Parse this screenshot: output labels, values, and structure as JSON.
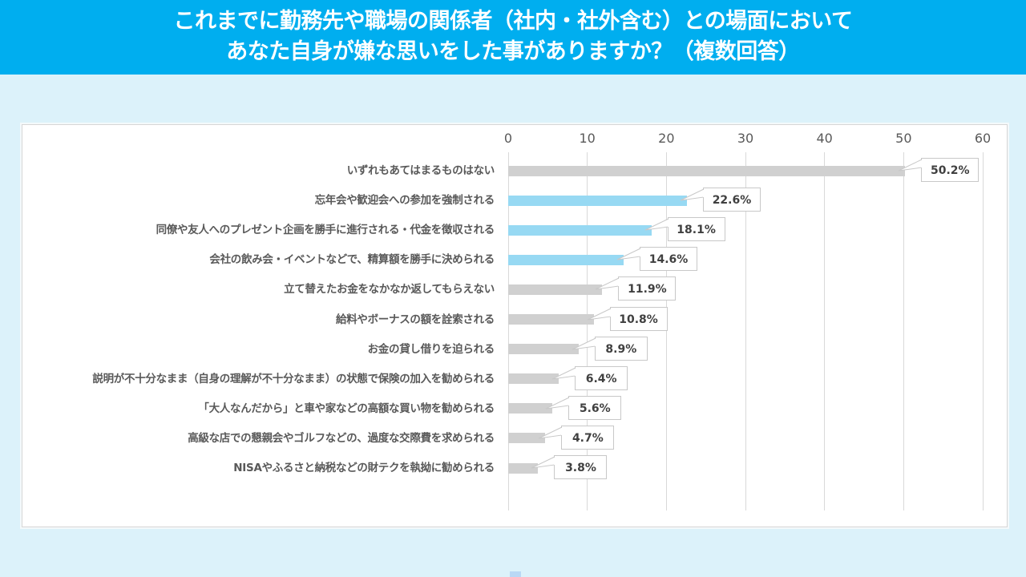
{
  "header": {
    "title_line1": "これまでに勤務先や職場の関係者（社内・社外含む）との場面において",
    "title_line2": "あなた自身が嫌な思いをした事がありますか？（複数回答）"
  },
  "colors": {
    "header_bg": "#00aeef",
    "page_bg": "#dcf2fa",
    "bar_highlight": "#97d9f3",
    "bar_default": "#d0d0d0"
  },
  "chart_data": {
    "type": "bar",
    "orientation": "horizontal",
    "title": "これまでに勤務先や職場の関係者（社内・社外含む）との場面において あなた自身が嫌な思いをした事がありますか？（複数回答）",
    "xlabel": "",
    "ylabel": "",
    "xlim": [
      0,
      60
    ],
    "ticks": [
      0,
      10,
      20,
      30,
      40,
      50,
      60
    ],
    "tick_labels": [
      "0",
      "10",
      "20",
      "30",
      "40",
      "50",
      "60"
    ],
    "grid": true,
    "legend": null,
    "unit": "%",
    "categories": [
      "いずれもあてはまるものはない",
      "忘年会や歓迎会への参加を強制される",
      "同僚や友人へのプレゼント企画を勝手に進行される・代金を徴収される",
      "会社の飲み会・イベントなどで、精算額を勝手に決められる",
      "立て替えたお金をなかなか返してもらえない",
      "給料やボーナスの額を詮索される",
      "お金の貸し借りを迫られる",
      "説明が不十分なまま（自身の理解が不十分なまま）の状態で保険の加入を勧められる",
      "「大人なんだから」と車や家などの高額な買い物を勧められる",
      "高級な店での懇親会やゴルフなどの、過度な交際費を求められる",
      "NISAやふるさと納税などの財テクを執拗に勧められる"
    ],
    "values": [
      50.2,
      22.6,
      18.1,
      14.6,
      11.9,
      10.8,
      8.9,
      6.4,
      5.6,
      4.7,
      3.8
    ],
    "value_labels": [
      "50.2%",
      "22.6%",
      "18.1%",
      "14.6%",
      "11.9%",
      "10.8%",
      "8.9%",
      "6.4%",
      "5.6%",
      "4.7%",
      "3.8%"
    ],
    "highlighted": [
      false,
      true,
      true,
      true,
      false,
      false,
      false,
      false,
      false,
      false,
      false
    ]
  }
}
